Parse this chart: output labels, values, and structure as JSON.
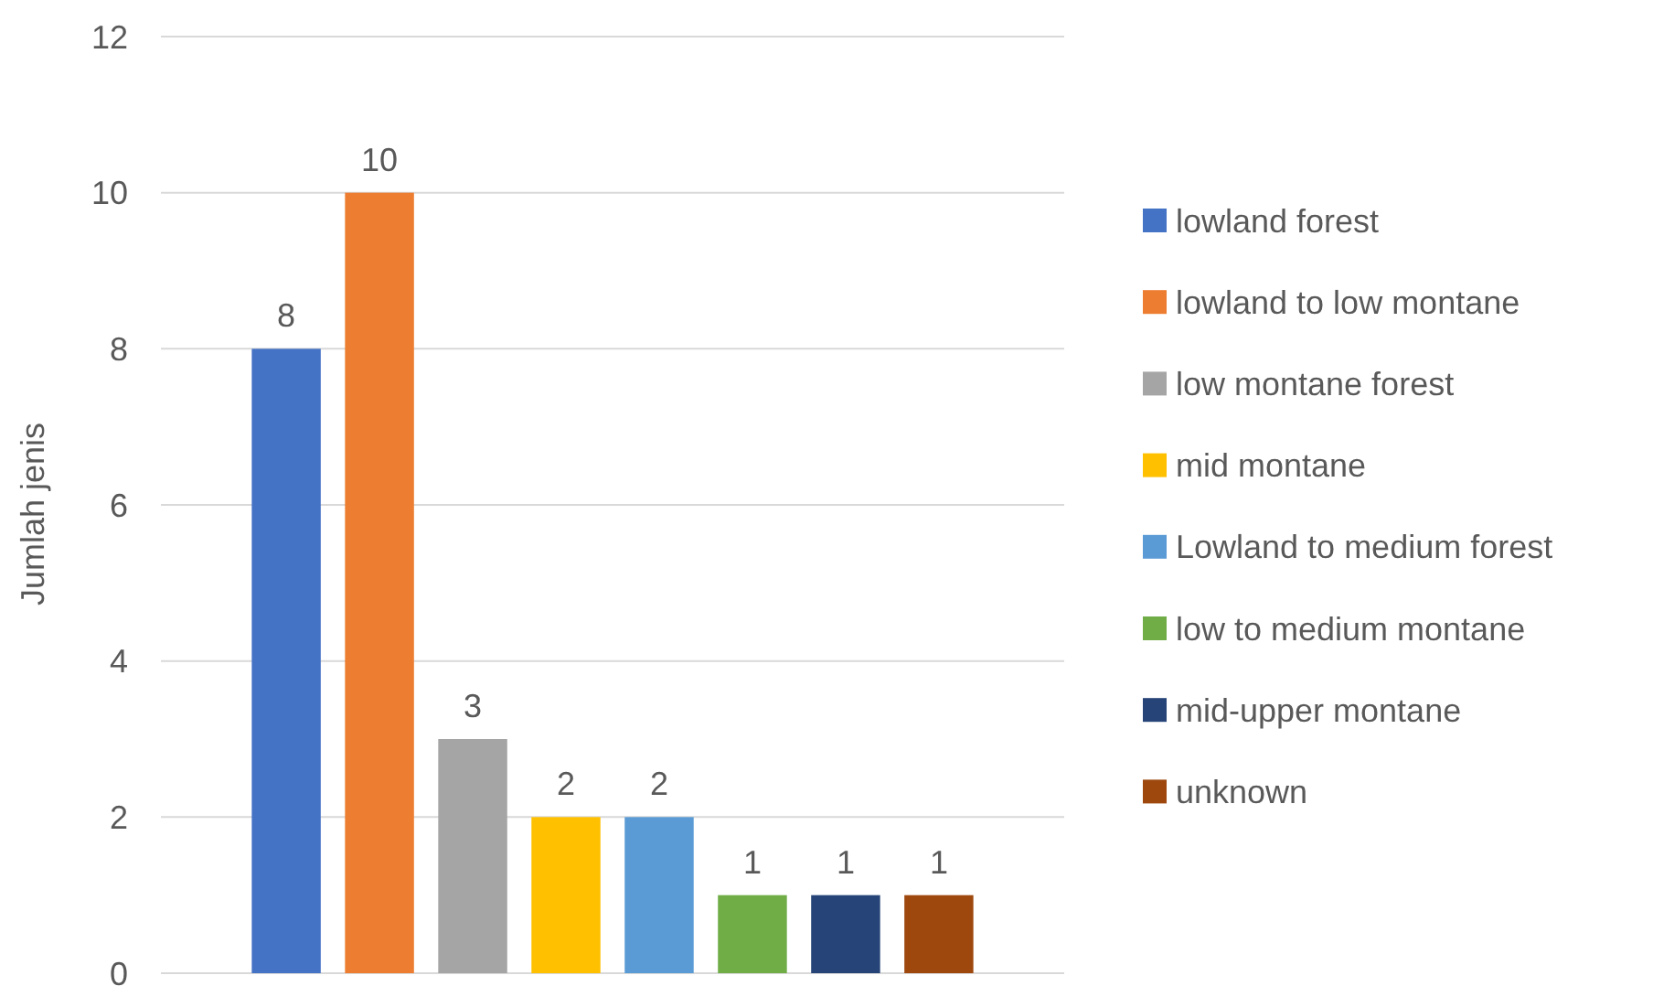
{
  "chart_data": {
    "type": "bar",
    "ylabel": "Jumlah jenis",
    "categories": [
      null
    ],
    "ylim": [
      0,
      12
    ],
    "yticks": [
      0,
      2,
      4,
      6,
      8,
      10,
      12
    ],
    "grid": "y",
    "data_labels": true,
    "legend": "right",
    "series": [
      {
        "name": "lowland forest",
        "color": "#4472c4",
        "values": [
          8
        ]
      },
      {
        "name": "lowland to low montane",
        "color": "#ed7d31",
        "values": [
          10
        ]
      },
      {
        "name": "low montane forest",
        "color": "#a5a5a5",
        "values": [
          3
        ]
      },
      {
        "name": "mid montane",
        "color": "#ffc000",
        "values": [
          2
        ]
      },
      {
        "name": "Lowland to medium forest",
        "color": "#5b9bd5",
        "values": [
          2
        ]
      },
      {
        "name": "low to medium montane",
        "color": "#70ad47",
        "values": [
          1
        ]
      },
      {
        "name": "mid-upper montane",
        "color": "#264478",
        "values": [
          1
        ]
      },
      {
        "name": "unknown",
        "color": "#9e480e",
        "values": [
          1
        ]
      }
    ]
  }
}
